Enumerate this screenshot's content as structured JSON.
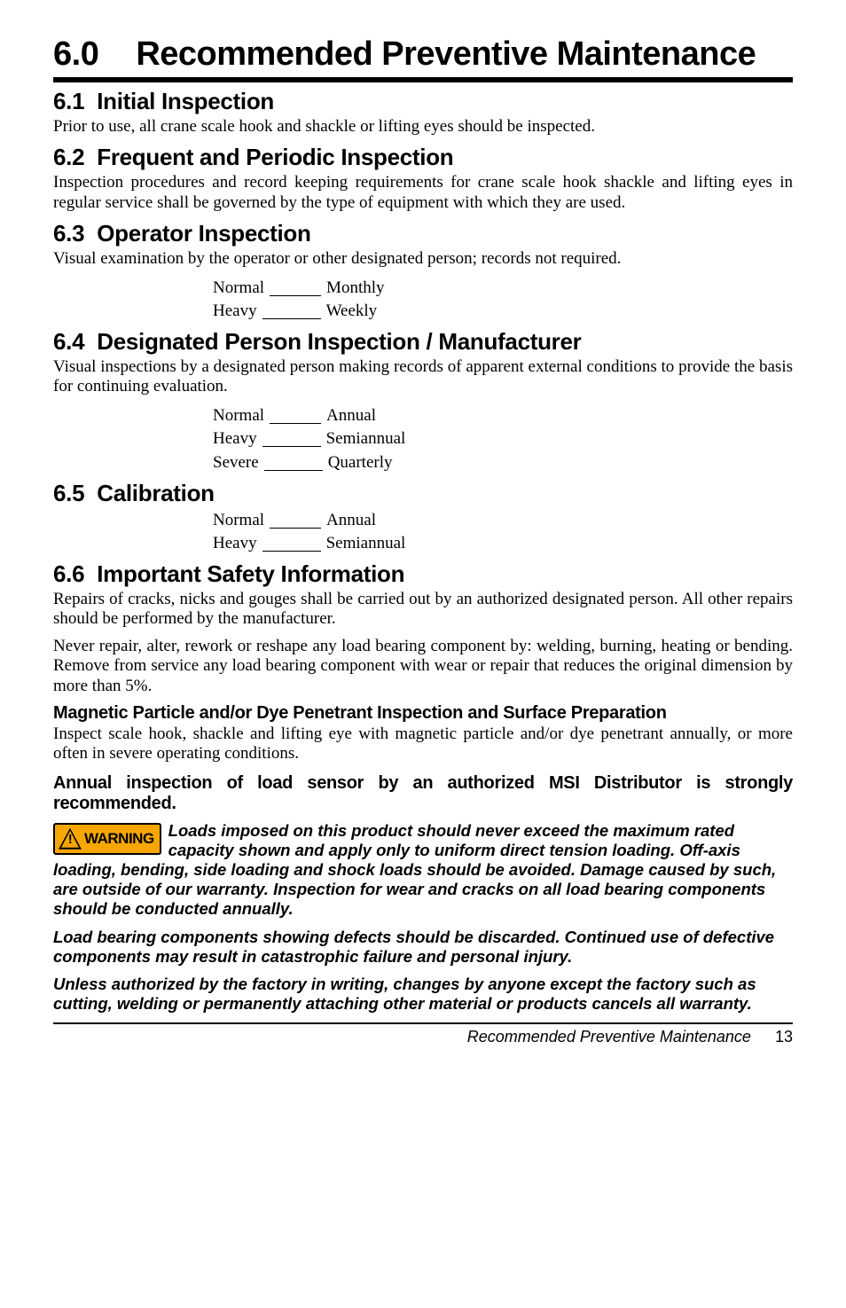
{
  "chapter": {
    "num": "6.0",
    "title": "Recommended Preventive Maintenance"
  },
  "s1": {
    "num": "6.1",
    "title": "Initial Inspection",
    "body": "Prior to use, all crane scale hook and shackle or lifting eyes should be inspected."
  },
  "s2": {
    "num": "6.2",
    "title": "Frequent and Periodic Inspection",
    "body": "Inspection procedures and record keeping requirements for crane scale hook shackle and lifting eyes in regular service shall be governed by the type of equipment with which they are used."
  },
  "s3": {
    "num": "6.3",
    "title": "Operator Inspection",
    "body": "Visual examination by the operator or other designated person; records not required.",
    "rows": [
      {
        "label": "Normal",
        "blank_w": 58,
        "value": "Monthly"
      },
      {
        "label": "Heavy",
        "blank_w": 66,
        "value": "Weekly"
      }
    ]
  },
  "s4": {
    "num": "6.4",
    "title": "Designated Person Inspection / Manufacturer",
    "body": "Visual inspections by a designated person making records of apparent external conditions to provide the basis for continuing evaluation.",
    "rows": [
      {
        "label": "Normal",
        "blank_w": 58,
        "value": "Annual"
      },
      {
        "label": "Heavy",
        "blank_w": 66,
        "value": "Semiannual"
      },
      {
        "label": "Severe",
        "blank_w": 66,
        "value": "Quarterly"
      }
    ]
  },
  "s5": {
    "num": "6.5",
    "title": "Calibration",
    "rows": [
      {
        "label": "Normal",
        "blank_w": 58,
        "value": "Annual"
      },
      {
        "label": "Heavy",
        "blank_w": 66,
        "value": "Semiannual"
      }
    ]
  },
  "s6": {
    "num": "6.6",
    "title": "Important Safety Information",
    "p1": "Repairs of cracks, nicks and gouges shall be carried out by an authorized designated person. All other repairs should be performed by the manufacturer.",
    "p2": "Never repair, alter, rework or reshape any load bearing component by: welding, burning, heating or bending. Remove from service any load bearing component with wear or repair that reduces the original dimension by more than 5%.",
    "sub1": "Magnetic Particle and/or Dye Penetrant Inspection and Surface Preparation",
    "p3": "Inspect scale hook, shackle and lifting eye with magnetic particle and/or dye penetrant annually, or more often in severe operating conditions.",
    "note": "Annual inspection of load sensor by an authorized MSI Distributor is strongly recommended."
  },
  "warning": {
    "badge": "WARNING",
    "p1": "Loads imposed on this product should never exceed the maximum rated capacity shown and apply only to uniform direct tension loading. Off-axis loading, bending, side loading and shock loads should be avoided. Damage caused by such, are outside of our warranty. Inspection for wear and cracks on all load bearing components should be conducted annually.",
    "p2": "Load bearing components showing defects should be discarded. Continued use of defective components may result in catastrophic failure and personal injury.",
    "p3": "Unless authorized by the factory in writing, changes by anyone except the factory such as cutting, welding or permanently attaching other material or products cancels all warranty."
  },
  "footer": {
    "title": "Recommended Preventive Maintenance",
    "page": "13"
  },
  "colors": {
    "accent_orange": "#f7a600",
    "text": "#000000",
    "bg": "#ffffff"
  }
}
